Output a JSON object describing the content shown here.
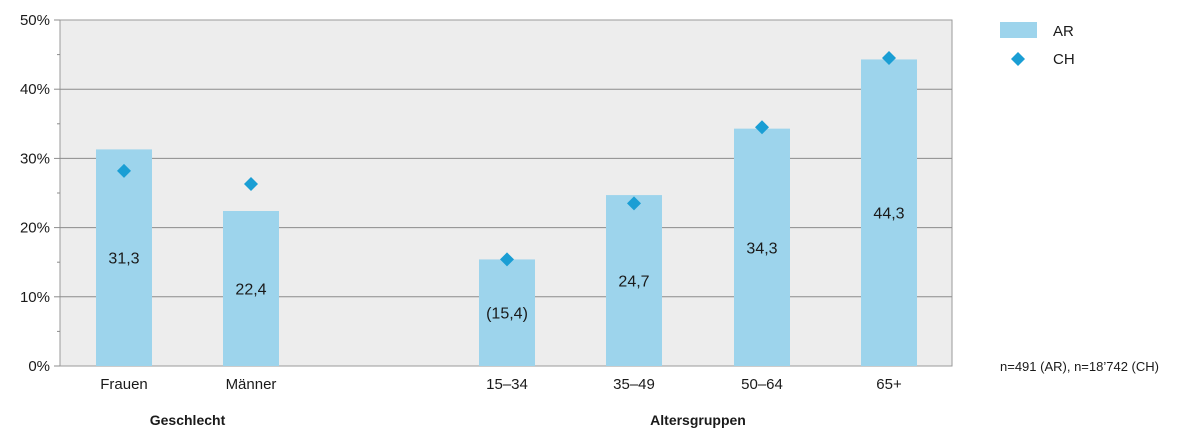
{
  "chart_data": {
    "type": "bar",
    "categories": [
      "Frauen",
      "Männer",
      "15–34",
      "35–49",
      "50–64",
      "65+"
    ],
    "groups": [
      {
        "label": "Geschlecht",
        "categories": [
          "Frauen",
          "Männer"
        ]
      },
      {
        "label": "Altersgruppen",
        "categories": [
          "15–34",
          "35–49",
          "50–64",
          "65+"
        ]
      }
    ],
    "series": [
      {
        "name": "AR",
        "kind": "bar",
        "color": "#9dd4ec",
        "values": [
          31.3,
          22.4,
          15.4,
          24.7,
          34.3,
          44.3
        ],
        "labels": [
          "31,3",
          "22,4",
          "(15,4)",
          "24,7",
          "34,3",
          "44,3"
        ]
      },
      {
        "name": "CH",
        "kind": "marker",
        "marker": "diamond",
        "color": "#1a9ed4",
        "values": [
          28.2,
          26.3,
          15.4,
          23.5,
          34.5,
          44.5
        ]
      }
    ],
    "ylim": [
      0,
      50
    ],
    "yticks": [
      "0%",
      "10%",
      "20%",
      "30%",
      "40%",
      "50%"
    ],
    "grid": true,
    "legend_position": "top-right",
    "note": "n=491 (AR), n=18’742 (CH)"
  }
}
